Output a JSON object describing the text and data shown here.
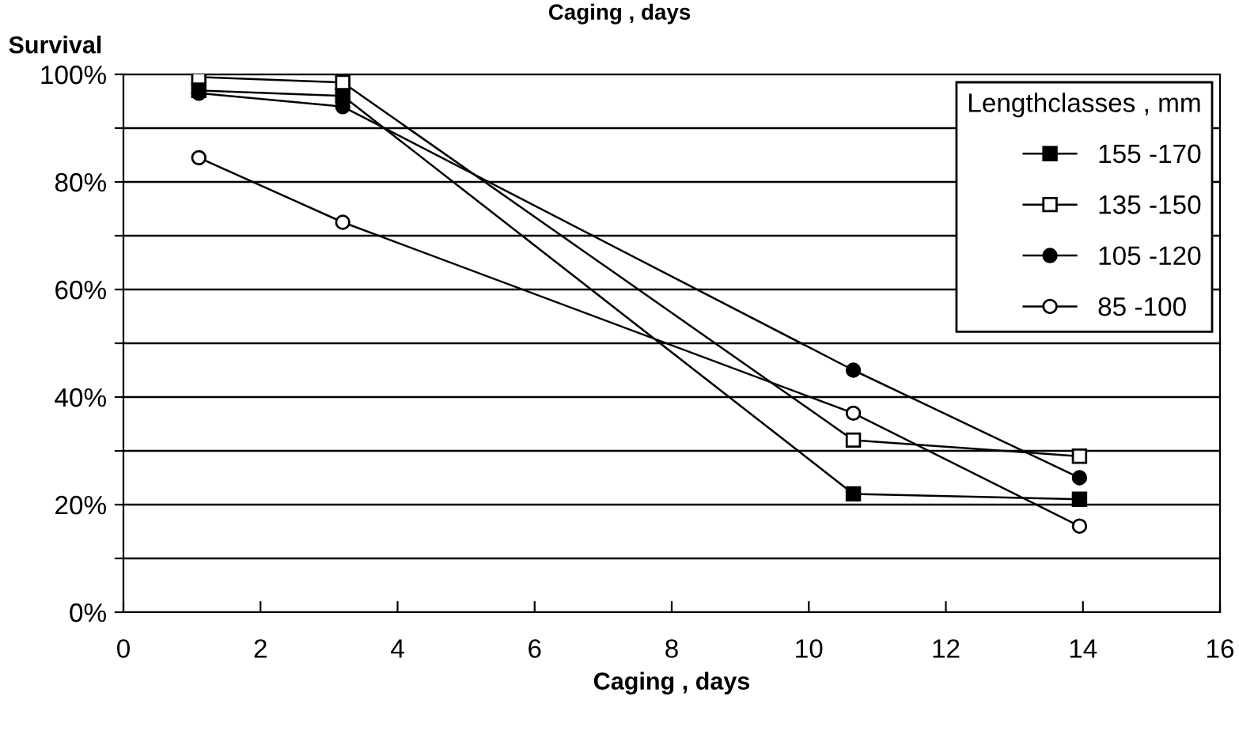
{
  "chart_data": {
    "type": "line",
    "xlabel": "Caging , days",
    "ylabel": "Survival",
    "legend_title": "Lengthclasses , mm",
    "legend": "top right",
    "grid": "y",
    "line_style": "solid",
    "annotations": [
      "Caging , days"
    ],
    "xlim": [
      0,
      16
    ],
    "xticks": [
      0,
      2,
      4,
      6,
      8,
      10,
      12,
      14,
      16
    ],
    "ylim": [
      0,
      100
    ],
    "yticks": [
      {
        "value": 0,
        "label": "0%"
      },
      {
        "value": 10,
        "label": null
      },
      {
        "value": 20,
        "label": "20%"
      },
      {
        "value": 30,
        "label": null
      },
      {
        "value": 40,
        "label": "40%"
      },
      {
        "value": 50,
        "label": null
      },
      {
        "value": 60,
        "label": "60%"
      },
      {
        "value": 70,
        "label": null
      },
      {
        "value": 80,
        "label": "80%"
      },
      {
        "value": 90,
        "label": null
      },
      {
        "value": 100,
        "label": "100%"
      }
    ],
    "series": [
      {
        "name": "155 -170",
        "color": "#000000",
        "marker": "square",
        "x": [
          1.1,
          3.2,
          10.65,
          13.95
        ],
        "values": [
          97,
          96,
          22,
          21
        ]
      },
      {
        "name": "135 -150",
        "color": "#000000",
        "marker": "square",
        "x": [
          1.1,
          3.2,
          10.65,
          13.95
        ],
        "values": [
          99.5,
          98.5,
          32,
          29
        ]
      },
      {
        "name": "105 -120",
        "color": "#000000",
        "marker": "circle",
        "x": [
          1.1,
          3.2,
          10.65,
          13.95
        ],
        "values": [
          96.5,
          94,
          45,
          25
        ]
      },
      {
        "name": "85 -100",
        "color": "#000000",
        "marker": "circle",
        "x": [
          1.1,
          3.2,
          10.65,
          13.95
        ],
        "values": [
          84.5,
          72.5,
          37,
          16
        ]
      }
    ]
  }
}
